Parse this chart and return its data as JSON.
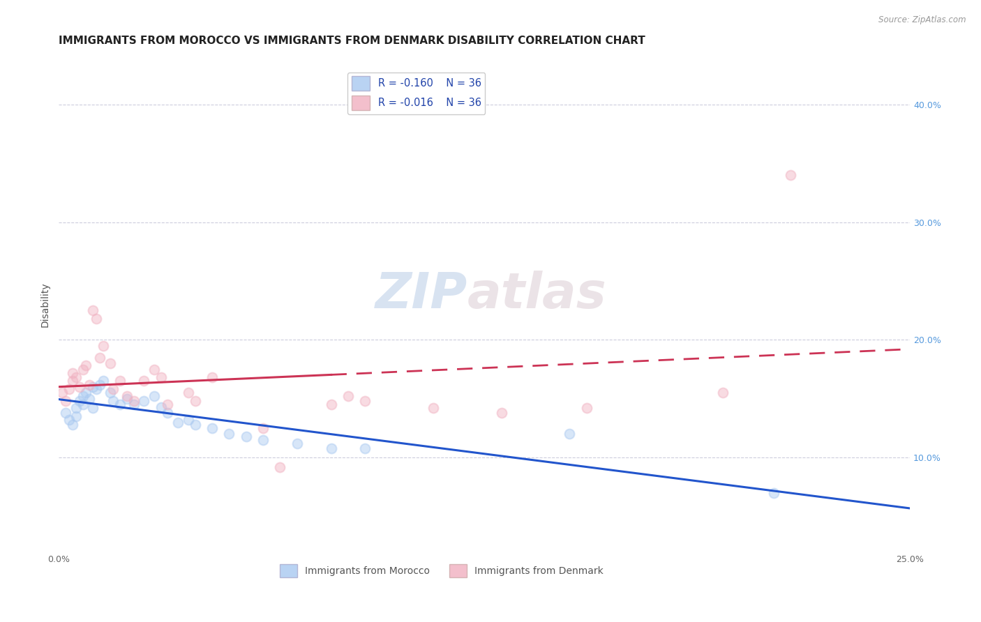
{
  "title": "IMMIGRANTS FROM MOROCCO VS IMMIGRANTS FROM DENMARK DISABILITY CORRELATION CHART",
  "source_text": "Source: ZipAtlas.com",
  "ylabel": "Disability",
  "xlim": [
    0.0,
    0.25
  ],
  "ylim": [
    0.02,
    0.44
  ],
  "yticks": [
    0.1,
    0.2,
    0.3,
    0.4
  ],
  "ytick_labels_right": [
    "10.0%",
    "20.0%",
    "30.0%",
    "40.0%"
  ],
  "xticks": [
    0.0,
    0.05,
    0.1,
    0.15,
    0.2,
    0.25
  ],
  "xtick_labels": [
    "0.0%",
    "",
    "",
    "",
    "",
    "25.0%"
  ],
  "blue_color": "#a8c8f0",
  "pink_color": "#f0b0c0",
  "blue_line_color": "#2255cc",
  "pink_line_color": "#cc3355",
  "watermark_zip": "ZIP",
  "watermark_atlas": "atlas",
  "legend_r_blue": "R = -0.160",
  "legend_n_blue": "N = 36",
  "legend_r_pink": "R = -0.016",
  "legend_n_pink": "N = 36",
  "legend_label_blue": "Immigrants from Morocco",
  "legend_label_pink": "Immigrants from Denmark",
  "blue_x": [
    0.002,
    0.003,
    0.004,
    0.005,
    0.005,
    0.006,
    0.007,
    0.007,
    0.008,
    0.009,
    0.01,
    0.01,
    0.011,
    0.012,
    0.013,
    0.015,
    0.016,
    0.018,
    0.02,
    0.022,
    0.025,
    0.028,
    0.03,
    0.032,
    0.035,
    0.038,
    0.04,
    0.045,
    0.05,
    0.055,
    0.06,
    0.07,
    0.08,
    0.09,
    0.15,
    0.21
  ],
  "blue_y": [
    0.138,
    0.132,
    0.128,
    0.142,
    0.135,
    0.148,
    0.145,
    0.152,
    0.155,
    0.15,
    0.16,
    0.142,
    0.158,
    0.162,
    0.165,
    0.155,
    0.148,
    0.145,
    0.15,
    0.145,
    0.148,
    0.152,
    0.143,
    0.138,
    0.13,
    0.132,
    0.128,
    0.125,
    0.12,
    0.118,
    0.115,
    0.112,
    0.108,
    0.108,
    0.12,
    0.07
  ],
  "pink_x": [
    0.001,
    0.002,
    0.003,
    0.004,
    0.004,
    0.005,
    0.006,
    0.007,
    0.008,
    0.009,
    0.01,
    0.011,
    0.012,
    0.013,
    0.015,
    0.016,
    0.018,
    0.02,
    0.022,
    0.025,
    0.028,
    0.03,
    0.032,
    0.038,
    0.04,
    0.045,
    0.06,
    0.065,
    0.08,
    0.085,
    0.09,
    0.11,
    0.13,
    0.155,
    0.195,
    0.215
  ],
  "pink_y": [
    0.155,
    0.148,
    0.158,
    0.165,
    0.172,
    0.168,
    0.16,
    0.175,
    0.178,
    0.162,
    0.225,
    0.218,
    0.185,
    0.195,
    0.18,
    0.158,
    0.165,
    0.152,
    0.148,
    0.165,
    0.175,
    0.168,
    0.145,
    0.155,
    0.148,
    0.168,
    0.125,
    0.092,
    0.145,
    0.152,
    0.148,
    0.142,
    0.138,
    0.142,
    0.155,
    0.34
  ],
  "title_fontsize": 11,
  "axis_label_fontsize": 10,
  "tick_fontsize": 9,
  "background_color": "#ffffff",
  "grid_color": "#ccccdd",
  "marker_size": 100,
  "marker_alpha": 0.45
}
